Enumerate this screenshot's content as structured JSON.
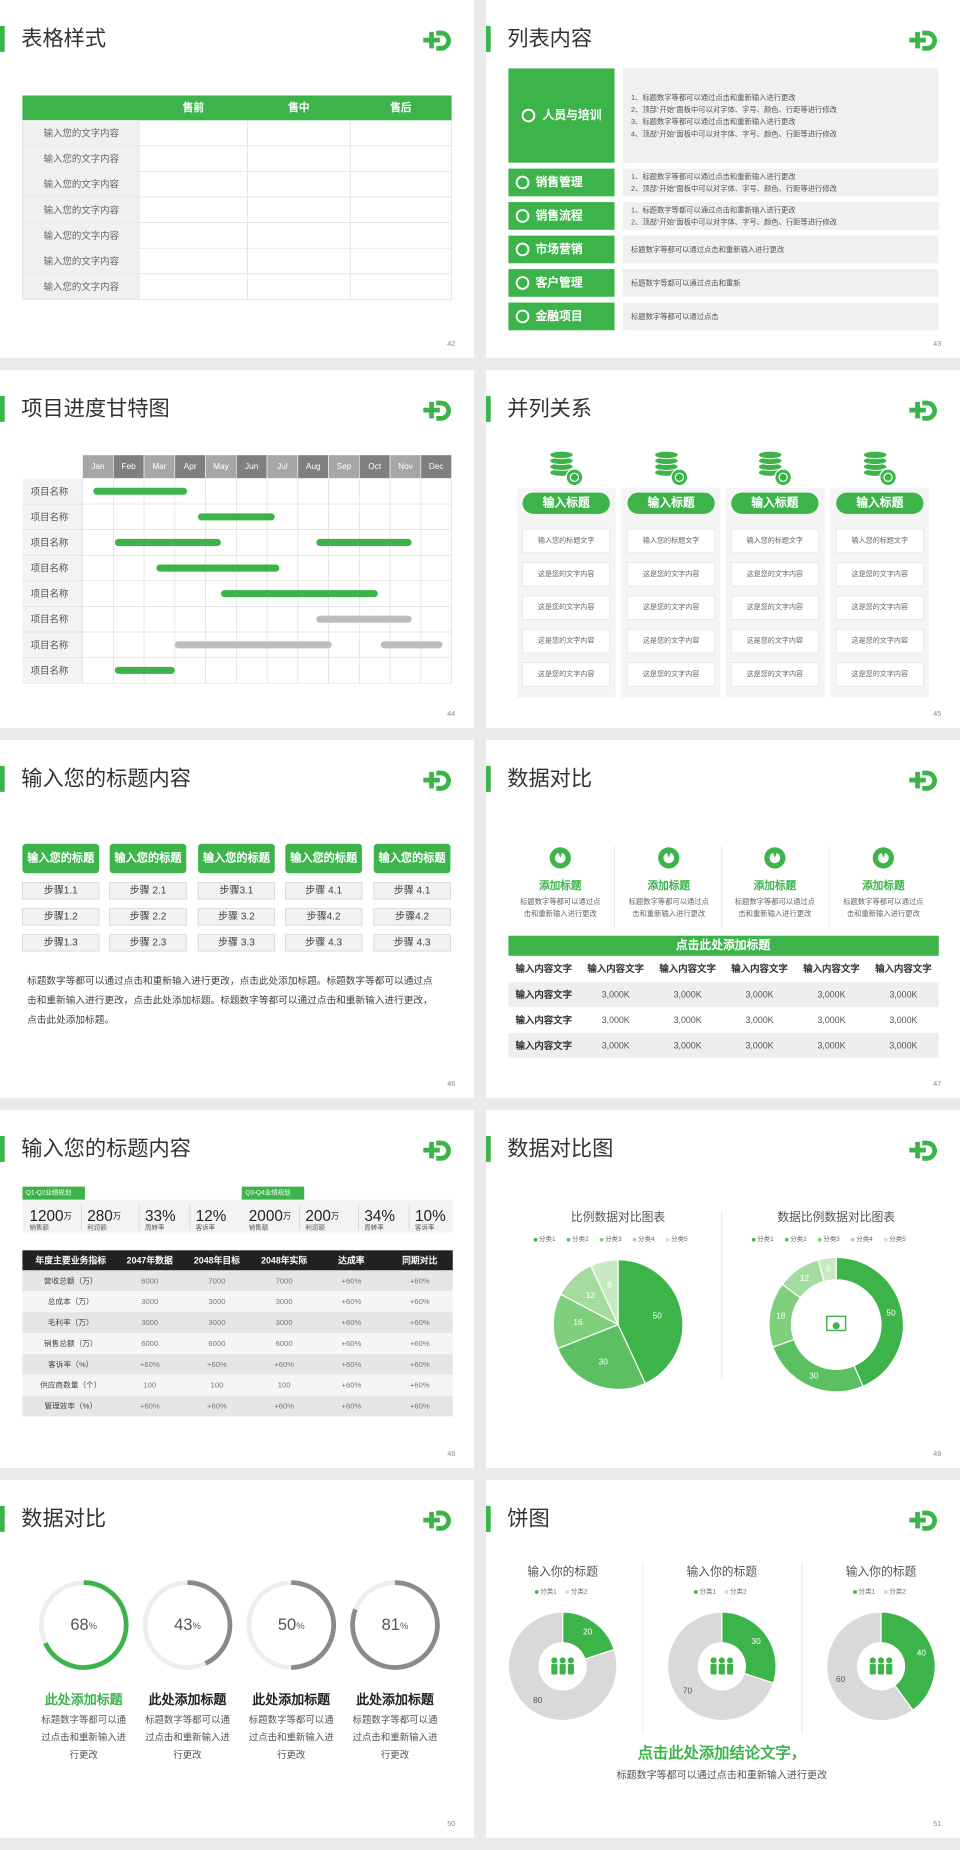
{
  "slides": [
    {
      "number": "42",
      "title": "表格样式",
      "table": {
        "columns": [
          "售前",
          "售中",
          "售后"
        ],
        "rows": [
          "输入您的文字内容",
          "输入您的文字内容",
          "输入您的文字内容",
          "输入您的文字内容",
          "输入您的文字内容",
          "输入您的文字内容",
          "输入您的文字内容"
        ]
      }
    },
    {
      "number": "43",
      "title": "列表内容",
      "items": [
        {
          "label": "人员与培训",
          "lines": [
            "1、标题数字等都可以通过点击和重新输入进行更改",
            "2、顶部“开始”面板中可以对字体、字号、颜色、行距等进行修改",
            "3、标题数字等都可以通过点击和重新输入进行更改",
            "4、顶部“开始”面板中可以对字体、字号、颜色、行距等进行修改"
          ]
        },
        {
          "label": "销售管理",
          "lines": [
            "1、标题数字等都可以通过点击和重新输入进行更改",
            "2、顶部“开始”面板中可以对字体、字号、颜色、行距等进行修改"
          ]
        },
        {
          "label": "销售流程",
          "lines": [
            "1、标题数字等都可以通过点击和重新输入进行更改",
            "2、顶部“开始”面板中可以对字体、字号、颜色、行距等进行修改"
          ]
        },
        {
          "label": "市场营销",
          "lines": [
            "标题数字等都可以通过点击和重新输入进行更改"
          ]
        },
        {
          "label": "客户管理",
          "lines": [
            "标题数字等都可以通过点击和重新"
          ]
        },
        {
          "label": "金融项目",
          "lines": [
            "标题数字等都可以通过点击"
          ]
        }
      ]
    },
    {
      "number": "44",
      "title": "项目进度甘特图",
      "months": [
        "Jan",
        "Feb",
        "Mar",
        "Apr",
        "May",
        "Jun",
        "Jul",
        "Aug",
        "Sep",
        "Oct",
        "Nov",
        "Dec"
      ],
      "tasks": [
        {
          "label": "项目名称",
          "bars": [
            {
              "start": 0.35,
              "end": 3.4,
              "color": "#3cb44a"
            }
          ]
        },
        {
          "label": "项目名称",
          "bars": [
            {
              "start": 3.75,
              "end": 6.25,
              "color": "#3cb44a"
            }
          ]
        },
        {
          "label": "项目名称",
          "bars": [
            {
              "start": 1.05,
              "end": 4.5,
              "color": "#3cb44a"
            },
            {
              "start": 7.6,
              "end": 10.7,
              "color": "#3cb44a"
            }
          ]
        },
        {
          "label": "项目名称",
          "bars": [
            {
              "start": 2.4,
              "end": 6.4,
              "color": "#3cb44a"
            }
          ]
        },
        {
          "label": "项目名称",
          "bars": [
            {
              "start": 4.5,
              "end": 9.6,
              "color": "#3cb44a"
            }
          ]
        },
        {
          "label": "项目名称",
          "bars": [
            {
              "start": 7.6,
              "end": 10.7,
              "color": "#bdbdbd"
            }
          ]
        },
        {
          "label": "项目名称",
          "bars": [
            {
              "start": 3.0,
              "end": 8.1,
              "color": "#bdbdbd"
            },
            {
              "start": 9.7,
              "end": 11.7,
              "color": "#bdbdbd"
            }
          ]
        },
        {
          "label": "项目名称",
          "bars": [
            {
              "start": 1.05,
              "end": 3.0,
              "color": "#3cb44a"
            }
          ]
        }
      ]
    },
    {
      "number": "45",
      "title": "并列关系",
      "columns": [
        {
          "header": "输入标题",
          "cells": [
            "输入您的标题文字",
            "这是您的文字内容",
            "这是您的文字内容",
            "这是您的文字内容",
            "这是您的文字内容"
          ]
        },
        {
          "header": "输入标题",
          "cells": [
            "输入您的标题文字",
            "这是您的文字内容",
            "这是您的文字内容",
            "这是您的文字内容",
            "这是您的文字内容"
          ]
        },
        {
          "header": "输入标题",
          "cells": [
            "输入您的标题文字",
            "这是您的文字内容",
            "这是您的文字内容",
            "这是您的文字内容",
            "这是您的文字内容"
          ]
        },
        {
          "header": "输入标题",
          "cells": [
            "输入您的标题文字",
            "这是您的文字内容",
            "这是您的文字内容",
            "这是您的文字内容",
            "这是您的文字内容"
          ]
        }
      ]
    },
    {
      "number": "46",
      "title": "输入您的标题内容",
      "columns": [
        {
          "header": "输入您的标题",
          "steps": [
            "步骤1.1",
            "步骤1.2",
            "步骤1.3"
          ]
        },
        {
          "header": "输入您的标题",
          "steps": [
            "步骤 2.1",
            "步骤 2.2",
            "步骤 2.3"
          ]
        },
        {
          "header": "输入您的标题",
          "steps": [
            "步骤3.1",
            "步骤 3.2",
            "步骤 3.3"
          ]
        },
        {
          "header": "输入您的标题",
          "steps": [
            "步骤 4.1",
            "步骤4.2",
            "步骤 4.3"
          ]
        },
        {
          "header": "输入您的标题",
          "steps": [
            "步骤 4.1",
            "步骤4.2",
            "步骤 4.3"
          ]
        }
      ],
      "paragraph": [
        "标题数字等都可以通过点击和重新输入进行更改，点击此处添加标题。标题数字等都可以通过点",
        "击和重新输入进行更改，点击此处添加标题。标题数字等都可以通过点击和重新输入进行更改，",
        "点击此处添加标题。"
      ]
    },
    {
      "number": "47",
      "title": "数据对比",
      "features": [
        {
          "title": "添加标题",
          "lines": [
            "标题数字等都可以通过点",
            "击和重新输入进行更改"
          ]
        },
        {
          "title": "添加标题",
          "lines": [
            "标题数字等都可以通过点",
            "击和重新输入进行更改"
          ]
        },
        {
          "title": "添加标题",
          "lines": [
            "标题数字等都可以通过点",
            "击和重新输入进行更改"
          ]
        },
        {
          "title": "添加标题",
          "lines": [
            "标题数字等都可以通过点",
            "击和重新输入进行更改"
          ]
        }
      ],
      "table": {
        "title": "点击此处添加标题",
        "header": [
          "输入内容文字",
          "输入内容文字",
          "输入内容文字",
          "输入内容文字",
          "输入内容文字",
          "输入内容文字"
        ],
        "rows": [
          [
            "输入内容文字",
            "3,000K",
            "3,000K",
            "3,000K",
            "3,000K",
            "3,000K"
          ],
          [
            "输入内容文字",
            "3,000K",
            "3,000K",
            "3,000K",
            "3,000K",
            "3,000K"
          ],
          [
            "输入内容文字",
            "3,000K",
            "3,000K",
            "3,000K",
            "3,000K",
            "3,000K"
          ]
        ]
      }
    },
    {
      "number": "48",
      "title": "输入您的标题内容",
      "groups": [
        {
          "tag": "Q1-Q2业绩规划",
          "stats": [
            {
              "value": "1200",
              "unit": "万",
              "label": "销售额"
            },
            {
              "value": "280",
              "unit": "万",
              "label": "利润额"
            },
            {
              "value": "33%",
              "label": "周转率"
            },
            {
              "value": "12%",
              "label": "客诉率"
            }
          ]
        },
        {
          "tag": "Q3-Q4业绩规划",
          "stats": [
            {
              "value": "2000",
              "unit": "万",
              "label": "销售额"
            },
            {
              "value": "200",
              "unit": "万",
              "label": "利润额"
            },
            {
              "value": "34%",
              "label": "周转率"
            },
            {
              "value": "10%",
              "label": "客诉率"
            }
          ]
        }
      ],
      "table": {
        "header": [
          "年度主要业务指标",
          "2047年数据",
          "2048年目标",
          "2048年实际",
          "达成率",
          "同期对比"
        ],
        "rows": [
          [
            "营收总额（万）",
            "6000",
            "7000",
            "7000",
            "+60%",
            "+60%"
          ],
          [
            "总成本（万）",
            "3000",
            "3000",
            "3000",
            "+60%",
            "+60%"
          ],
          [
            "毛利率（万）",
            "3000",
            "3000",
            "3000",
            "+60%",
            "+60%"
          ],
          [
            "销售总额（万）",
            "6000",
            "6000",
            "6000",
            "+60%",
            "+60%"
          ],
          [
            "客诉率（%）",
            "+60%",
            "+60%",
            "+60%",
            "+60%",
            "+60%"
          ],
          [
            "供应商数量（个）",
            "100",
            "100",
            "100",
            "+60%",
            "+60%"
          ],
          [
            "管理效率（%）",
            "+60%",
            "+60%",
            "+60%",
            "+60%",
            "+60%"
          ]
        ]
      }
    },
    {
      "number": "49",
      "title": "数据对比图",
      "charts": [
        {
          "type": "pie",
          "title": "比例数据对比图表",
          "legend": [
            "分类1",
            "分类2",
            "分类3",
            "分类4",
            "分类5"
          ],
          "values": [
            50,
            30,
            16,
            12,
            8
          ],
          "colors": [
            "#3cb44a",
            "#5cc062",
            "#7fcf7d",
            "#a3dc9e",
            "#c8eac3"
          ]
        },
        {
          "type": "donut",
          "title": "数据比例数据对比图表",
          "legend": [
            "分类1",
            "分类2",
            "分类3",
            "分类4",
            "分类5"
          ],
          "values": [
            50,
            30,
            18,
            12,
            5
          ],
          "colors": [
            "#3cb44a",
            "#5cc062",
            "#7fcf7d",
            "#a3dc9e",
            "#c8eac3"
          ]
        }
      ]
    },
    {
      "number": "50",
      "title": "数据对比",
      "rings": [
        {
          "value": 68,
          "unit": "%",
          "color": "#3cb44a",
          "title": "此处添加标题",
          "lines": [
            "标题数字等都可以通",
            "过点击和重新输入进",
            "行更改"
          ]
        },
        {
          "value": 43,
          "unit": "%",
          "color": "#8a8a8a",
          "title": "此处添加标题",
          "lines": [
            "标题数字等都可以通",
            "过点击和重新输入进",
            "行更改"
          ]
        },
        {
          "value": 50,
          "unit": "%",
          "color": "#8a8a8a",
          "title": "此处添加标题",
          "lines": [
            "标题数字等都可以通",
            "过点击和重新输入进",
            "行更改"
          ]
        },
        {
          "value": 81,
          "unit": "%",
          "color": "#8a8a8a",
          "title": "此处添加标题",
          "lines": [
            "标题数字等都可以通",
            "过点击和重新输入进",
            "行更改"
          ]
        }
      ]
    },
    {
      "number": "51",
      "title": "饼图",
      "pies": [
        {
          "type": "donut",
          "title": "输入你的标题",
          "legend": [
            "分类1",
            "分类2"
          ],
          "values": [
            20,
            80
          ],
          "colors": [
            "#3cb44a",
            "#d9d9d9"
          ]
        },
        {
          "type": "donut",
          "title": "输入你的标题",
          "legend": [
            "分类1",
            "分类2"
          ],
          "values": [
            30,
            70
          ],
          "colors": [
            "#3cb44a",
            "#d9d9d9"
          ]
        },
        {
          "type": "donut",
          "title": "输入你的标题",
          "legend": [
            "分类1",
            "分类2"
          ],
          "values": [
            40,
            60
          ],
          "colors": [
            "#3cb44a",
            "#d9d9d9"
          ]
        }
      ],
      "conclusion": "点击此处添加结论文字，",
      "subtext": "标题数字等都可以通过点击和重新输入进行更改"
    }
  ]
}
